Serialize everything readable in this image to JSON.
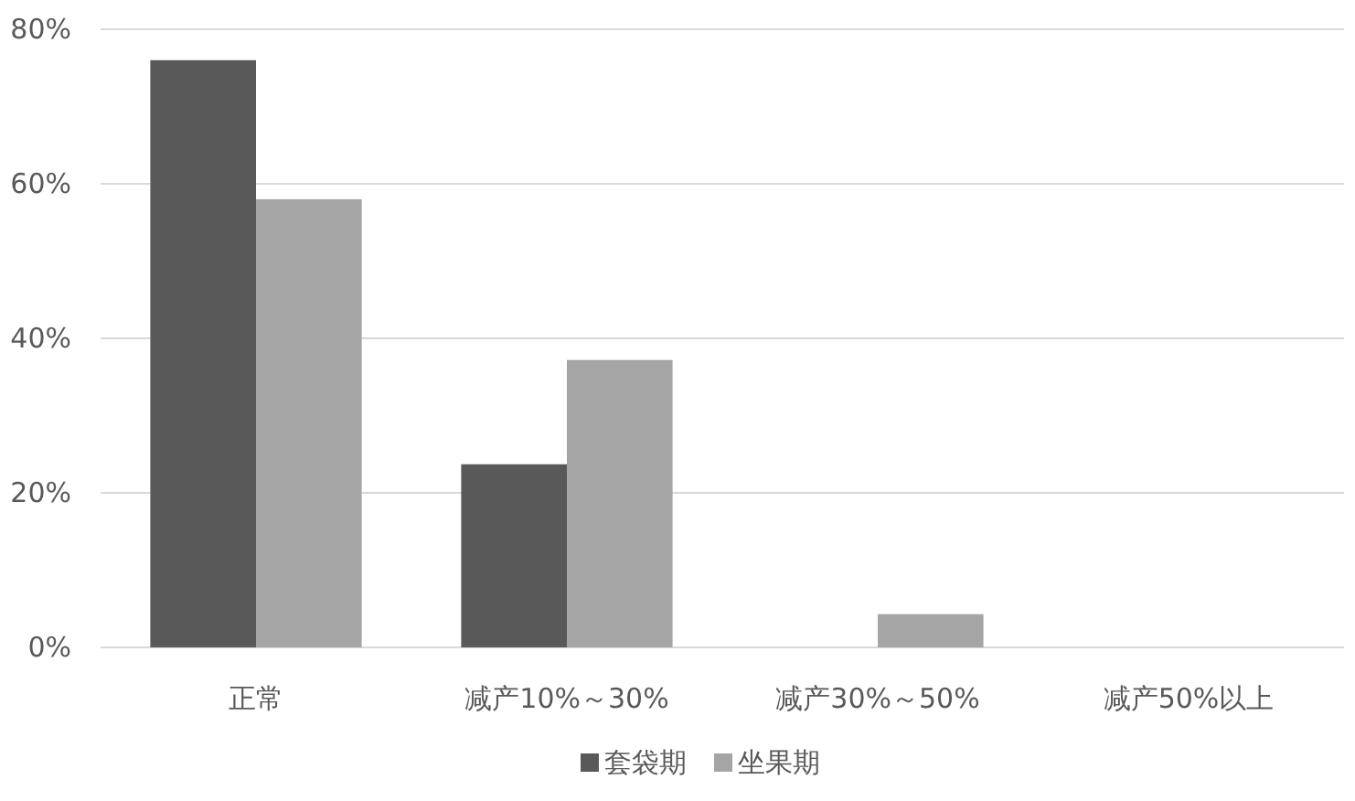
{
  "chart_data": {
    "type": "bar",
    "categories": [
      "正常",
      "减产10%～30%",
      "减产30%～50%",
      "减产50%以上"
    ],
    "series": [
      {
        "name": "套袋期",
        "color": "#595959",
        "values": [
          76,
          23.7,
          0,
          0
        ]
      },
      {
        "name": "坐果期",
        "color": "#a5a5a5",
        "values": [
          58,
          37.2,
          4.3,
          0
        ]
      }
    ],
    "ylim": [
      0,
      80
    ],
    "yticks": [
      {
        "value": 0,
        "label": "0%"
      },
      {
        "value": 20,
        "label": "20%"
      },
      {
        "value": 40,
        "label": "40%"
      },
      {
        "value": 60,
        "label": "60%"
      },
      {
        "value": 80,
        "label": "80%"
      }
    ],
    "grid": "y",
    "legend": "bottom"
  }
}
